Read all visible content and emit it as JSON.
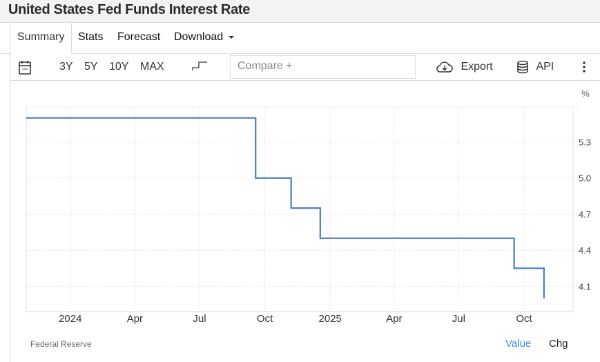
{
  "header": {
    "title": "United States Fed Funds Interest Rate"
  },
  "tabs": [
    {
      "label": "Summary",
      "active": true
    },
    {
      "label": "Stats"
    },
    {
      "label": "Forecast"
    },
    {
      "label": "Download"
    }
  ],
  "toolbar": {
    "calendar_icon": "calendar-icon",
    "ranges": [
      "3Y",
      "5Y",
      "10Y",
      "MAX"
    ],
    "chart_type_icon": "step-line-icon",
    "compare_placeholder": "Compare +",
    "export_label": "Export",
    "api_label": "API",
    "more_icon": "vertical-dots-icon"
  },
  "footer": {
    "source": "Federal Reserve",
    "value_label": "Value",
    "chg_label": "Chg"
  },
  "colors": {
    "line": "#4a7ebb",
    "accent": "#3d8fe6",
    "grid": "#e3e3e3"
  },
  "chart_data": {
    "type": "line",
    "step": true,
    "unit": "%",
    "grid": true,
    "x": [
      "2023-10-31",
      "2024-09-18",
      "2024-11-07",
      "2024-12-18",
      "2025-09-17",
      "2025-10-29"
    ],
    "values": [
      5.5,
      5.0,
      4.75,
      4.5,
      4.25,
      4.0
    ],
    "xlim": [
      "2023-10-31",
      "2025-12-09"
    ],
    "ylim": [
      3.89,
      5.59
    ],
    "x_ticks": [
      {
        "date": "2024-01-01",
        "label": "2024"
      },
      {
        "date": "2024-04-01",
        "label": "Apr"
      },
      {
        "date": "2024-07-01",
        "label": "Jul"
      },
      {
        "date": "2024-10-01",
        "label": "Oct"
      },
      {
        "date": "2025-01-01",
        "label": "2025"
      },
      {
        "date": "2025-04-01",
        "label": "Apr"
      },
      {
        "date": "2025-07-01",
        "label": "Jul"
      },
      {
        "date": "2025-10-01",
        "label": "Oct"
      }
    ],
    "y_ticks": [
      "4.1",
      "4.4",
      "4.7",
      "5.0",
      "5.3"
    ]
  }
}
